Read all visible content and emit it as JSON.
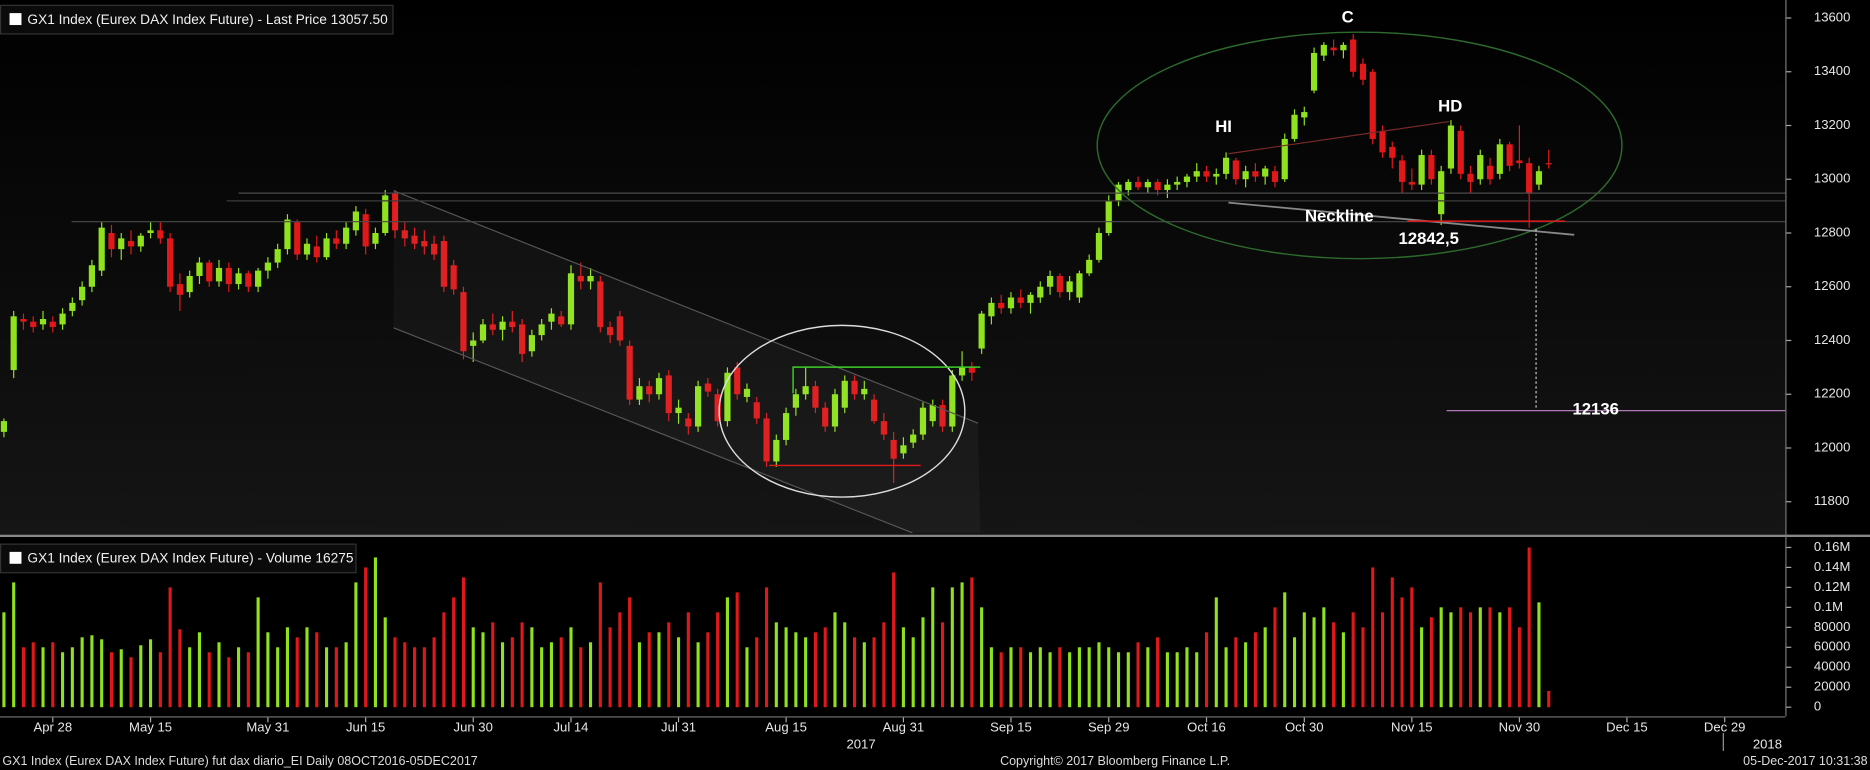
{
  "chart_data": [
    {
      "type": "candlestick",
      "title": "GX1 Index (Eurex DAX Index Future) - Last Price 13057.50",
      "up_color": "#8fe21d",
      "down_color": "#e0181a",
      "xlim": [
        -0.4,
        182.2
      ],
      "ylim": [
        11680,
        13667
      ],
      "yticks": [
        11800,
        12000,
        12200,
        12400,
        12600,
        12800,
        13000,
        13200,
        13400,
        13600
      ],
      "annotations": [
        "C",
        "HI",
        "HD",
        "Neckline",
        "12842,5",
        "12136"
      ],
      "ohlc": [
        [
          12060,
          12110,
          12040,
          12100
        ],
        [
          12290,
          12510,
          12260,
          12490
        ],
        [
          12480,
          12500,
          12440,
          12470
        ],
        [
          12470,
          12490,
          12430,
          12450
        ],
        [
          12460,
          12510,
          12440,
          12480
        ],
        [
          12470,
          12490,
          12430,
          12450
        ],
        [
          12460,
          12520,
          12440,
          12500
        ],
        [
          12510,
          12560,
          12490,
          12540
        ],
        [
          12550,
          12620,
          12530,
          12600
        ],
        [
          12600,
          12700,
          12580,
          12680
        ],
        [
          12660,
          12840,
          12640,
          12820
        ],
        [
          12800,
          12830,
          12710,
          12740
        ],
        [
          12740,
          12800,
          12700,
          12780
        ],
        [
          12770,
          12810,
          12720,
          12750
        ],
        [
          12750,
          12800,
          12730,
          12790
        ],
        [
          12800,
          12840,
          12780,
          12810
        ],
        [
          12810,
          12840,
          12760,
          12780
        ],
        [
          12780,
          12800,
          12580,
          12600
        ],
        [
          12610,
          12650,
          12510,
          12570
        ],
        [
          12580,
          12660,
          12560,
          12640
        ],
        [
          12640,
          12710,
          12610,
          12690
        ],
        [
          12690,
          12700,
          12600,
          12620
        ],
        [
          12620,
          12700,
          12600,
          12670
        ],
        [
          12670,
          12690,
          12580,
          12610
        ],
        [
          12610,
          12670,
          12590,
          12650
        ],
        [
          12650,
          12660,
          12580,
          12600
        ],
        [
          12600,
          12670,
          12580,
          12660
        ],
        [
          12660,
          12710,
          12630,
          12690
        ],
        [
          12690,
          12760,
          12670,
          12740
        ],
        [
          12740,
          12870,
          12720,
          12850
        ],
        [
          12840,
          12850,
          12700,
          12720
        ],
        [
          12720,
          12780,
          12700,
          12760
        ],
        [
          12750,
          12790,
          12690,
          12710
        ],
        [
          12710,
          12800,
          12700,
          12780
        ],
        [
          12780,
          12810,
          12740,
          12760
        ],
        [
          12760,
          12840,
          12740,
          12820
        ],
        [
          12810,
          12900,
          12790,
          12880
        ],
        [
          12870,
          12890,
          12720,
          12750
        ],
        [
          12760,
          12820,
          12740,
          12800
        ],
        [
          12800,
          12960,
          12790,
          12940
        ],
        [
          12950,
          12960,
          12780,
          12810
        ],
        [
          12810,
          12840,
          12750,
          12780
        ],
        [
          12790,
          12820,
          12740,
          12760
        ],
        [
          12770,
          12810,
          12720,
          12750
        ],
        [
          12760,
          12790,
          12700,
          12720
        ],
        [
          12770,
          12790,
          12580,
          12600
        ],
        [
          12680,
          12700,
          12570,
          12590
        ],
        [
          12580,
          12600,
          12330,
          12360
        ],
        [
          12380,
          12430,
          12320,
          12400
        ],
        [
          12400,
          12480,
          12390,
          12460
        ],
        [
          12460,
          12500,
          12420,
          12440
        ],
        [
          12440,
          12490,
          12400,
          12470
        ],
        [
          12470,
          12510,
          12430,
          12450
        ],
        [
          12460,
          12480,
          12320,
          12350
        ],
        [
          12360,
          12440,
          12340,
          12420
        ],
        [
          12420,
          12480,
          12400,
          12460
        ],
        [
          12470,
          12520,
          12440,
          12500
        ],
        [
          12490,
          12510,
          12450,
          12460
        ],
        [
          12460,
          12680,
          12440,
          12650
        ],
        [
          12640,
          12690,
          12590,
          12620
        ],
        [
          12620,
          12670,
          12590,
          12640
        ],
        [
          12620,
          12640,
          12430,
          12450
        ],
        [
          12450,
          12470,
          12390,
          12420
        ],
        [
          12490,
          12510,
          12380,
          12400
        ],
        [
          12380,
          12400,
          12160,
          12180
        ],
        [
          12180,
          12260,
          12160,
          12230
        ],
        [
          12230,
          12250,
          12170,
          12200
        ],
        [
          12200,
          12280,
          12180,
          12260
        ],
        [
          12270,
          12290,
          12100,
          12130
        ],
        [
          12130,
          12180,
          12090,
          12150
        ],
        [
          12110,
          12130,
          12050,
          12080
        ],
        [
          12080,
          12250,
          12060,
          12230
        ],
        [
          12240,
          12260,
          12190,
          12210
        ],
        [
          12200,
          12220,
          12080,
          12100
        ],
        [
          12100,
          12300,
          12080,
          12280
        ],
        [
          12300,
          12320,
          12180,
          12200
        ],
        [
          12190,
          12240,
          12170,
          12220
        ],
        [
          12170,
          12190,
          12090,
          12110
        ],
        [
          12110,
          12130,
          11930,
          11950
        ],
        [
          11950,
          12050,
          11930,
          12030
        ],
        [
          12030,
          12150,
          12010,
          12130
        ],
        [
          12150,
          12220,
          12120,
          12200
        ],
        [
          12200,
          12300,
          12180,
          12230
        ],
        [
          12230,
          12250,
          12130,
          12150
        ],
        [
          12150,
          12170,
          12060,
          12080
        ],
        [
          12080,
          12220,
          12060,
          12200
        ],
        [
          12150,
          12270,
          12130,
          12250
        ],
        [
          12250,
          12270,
          12180,
          12200
        ],
        [
          12200,
          12250,
          12180,
          12220
        ],
        [
          12180,
          12200,
          12090,
          12100
        ],
        [
          12100,
          12130,
          12030,
          12050
        ],
        [
          12030,
          12060,
          11870,
          11960
        ],
        [
          11980,
          12040,
          11960,
          12010
        ],
        [
          12020,
          12070,
          12000,
          12050
        ],
        [
          12050,
          12170,
          12030,
          12150
        ],
        [
          12100,
          12180,
          12080,
          12160
        ],
        [
          12160,
          12180,
          12060,
          12080
        ],
        [
          12080,
          12290,
          12060,
          12270
        ],
        [
          12270,
          12360,
          12250,
          12300
        ],
        [
          12300,
          12320,
          12250,
          12280
        ],
        [
          12370,
          12510,
          12350,
          12500
        ],
        [
          12490,
          12560,
          12460,
          12540
        ],
        [
          12540,
          12570,
          12500,
          12520
        ],
        [
          12520,
          12580,
          12500,
          12560
        ],
        [
          12560,
          12590,
          12520,
          12540
        ],
        [
          12540,
          12580,
          12500,
          12570
        ],
        [
          12560,
          12620,
          12540,
          12600
        ],
        [
          12600,
          12660,
          12570,
          12640
        ],
        [
          12640,
          12650,
          12560,
          12580
        ],
        [
          12580,
          12640,
          12550,
          12620
        ],
        [
          12560,
          12660,
          12540,
          12650
        ],
        [
          12650,
          12720,
          12640,
          12700
        ],
        [
          12700,
          12820,
          12690,
          12800
        ],
        [
          12800,
          12940,
          12790,
          12920
        ],
        [
          12920,
          12990,
          12900,
          12980
        ],
        [
          12960,
          13000,
          12940,
          12990
        ],
        [
          12990,
          13010,
          12960,
          12970
        ],
        [
          12970,
          13000,
          12950,
          12990
        ],
        [
          12990,
          13000,
          12940,
          12960
        ],
        [
          12960,
          13000,
          12930,
          12980
        ],
        [
          12980,
          13010,
          12960,
          12990
        ],
        [
          12990,
          13020,
          12970,
          13010
        ],
        [
          13010,
          13060,
          12990,
          13030
        ],
        [
          13030,
          13050,
          12990,
          13010
        ],
        [
          13010,
          13040,
          12980,
          13020
        ],
        [
          13020,
          13100,
          13000,
          13080
        ],
        [
          13070,
          13080,
          12980,
          13000
        ],
        [
          13000,
          13050,
          12970,
          13030
        ],
        [
          13030,
          13060,
          12990,
          13010
        ],
        [
          13010,
          13050,
          12980,
          13040
        ],
        [
          13030,
          13050,
          12970,
          12990
        ],
        [
          13000,
          13170,
          12990,
          13150
        ],
        [
          13150,
          13260,
          13140,
          13240
        ],
        [
          13230,
          13270,
          13200,
          13250
        ],
        [
          13330,
          13490,
          13320,
          13470
        ],
        [
          13460,
          13510,
          13440,
          13500
        ],
        [
          13490,
          13520,
          13460,
          13480
        ],
        [
          13480,
          13510,
          13450,
          13500
        ],
        [
          13520,
          13540,
          13380,
          13400
        ],
        [
          13430,
          13450,
          13350,
          13370
        ],
        [
          13400,
          13410,
          13130,
          13150
        ],
        [
          13180,
          13200,
          13080,
          13100
        ],
        [
          13120,
          13140,
          13040,
          13080
        ],
        [
          13070,
          13090,
          12950,
          12990
        ],
        [
          12990,
          13040,
          12960,
          12980
        ],
        [
          12980,
          13110,
          12960,
          13090
        ],
        [
          13090,
          13110,
          12980,
          13000
        ],
        [
          12870,
          13050,
          12830,
          13030
        ],
        [
          13040,
          13220,
          13020,
          13200
        ],
        [
          13180,
          13200,
          13000,
          13020
        ],
        [
          13020,
          13050,
          12950,
          12990
        ],
        [
          13000,
          13110,
          12980,
          13090
        ],
        [
          13050,
          13080,
          12980,
          13000
        ],
        [
          13020,
          13150,
          13000,
          13130
        ],
        [
          13130,
          13140,
          13030,
          13050
        ],
        [
          13070,
          13200,
          13040,
          13060
        ],
        [
          13060,
          13080,
          12820,
          12950
        ],
        [
          12980,
          13050,
          12960,
          13030
        ],
        [
          13060,
          13110,
          13040,
          13057.5
        ]
      ]
    },
    {
      "type": "bar",
      "title": "GX1 Index (Eurex DAX Index Future) - Volume 16275",
      "xlim": [
        -0.4,
        182.2
      ],
      "ylim": [
        -8000,
        168700
      ],
      "yticks": [
        0,
        20000,
        40000,
        60000,
        80000,
        {
          "value": 100000,
          "label": "0.1M"
        },
        {
          "value": 120000,
          "label": "0.12M"
        },
        {
          "value": 140000,
          "label": "0.14M"
        },
        {
          "value": 160000,
          "label": "0.16M"
        }
      ],
      "xticks": [
        {
          "value": 5,
          "label": "Apr 28"
        },
        {
          "value": 15,
          "label": "May 15"
        },
        {
          "value": 27,
          "label": "May 31"
        },
        {
          "value": 37,
          "label": "Jun 15"
        },
        {
          "value": 48,
          "label": "Jun 30"
        },
        {
          "value": 58,
          "label": "Jul 14"
        },
        {
          "value": 69,
          "label": "Jul 31"
        },
        {
          "value": 80,
          "label": "Aug 15"
        },
        {
          "value": 92,
          "label": "Aug 31"
        },
        {
          "value": 103,
          "label": "Sep 15"
        },
        {
          "value": 113,
          "label": "Sep 29"
        },
        {
          "value": 123,
          "label": "Oct 16"
        },
        {
          "value": 133,
          "label": "Oct 30"
        },
        {
          "value": 144,
          "label": "Nov 15"
        },
        {
          "value": 155,
          "label": "Nov 30"
        },
        {
          "value": 166,
          "label": "Dec 15"
        },
        {
          "value": 176,
          "label": "Dec 29"
        }
      ],
      "values": [
        95000,
        125000,
        60000,
        65000,
        60000,
        65000,
        55000,
        60000,
        70000,
        72000,
        68000,
        55000,
        58000,
        50000,
        62000,
        68000,
        55000,
        120000,
        78000,
        60000,
        75000,
        55000,
        65000,
        50000,
        60000,
        55000,
        110000,
        75000,
        60000,
        80000,
        70000,
        80000,
        75000,
        60000,
        60000,
        65000,
        125000,
        140000,
        150000,
        90000,
        70000,
        65000,
        60000,
        60000,
        70000,
        95000,
        110000,
        130000,
        80000,
        75000,
        85000,
        65000,
        70000,
        85000,
        80000,
        60000,
        65000,
        70000,
        80000,
        60000,
        65000,
        125000,
        80000,
        95000,
        110000,
        65000,
        75000,
        75000,
        85000,
        70000,
        95000,
        65000,
        75000,
        95000,
        110000,
        115000,
        60000,
        70000,
        120000,
        85000,
        80000,
        75000,
        70000,
        75000,
        80000,
        95000,
        85000,
        70000,
        65000,
        70000,
        85000,
        135000,
        80000,
        70000,
        90000,
        120000,
        85000,
        120000,
        125000,
        130000,
        100000,
        60000,
        55000,
        60000,
        60000,
        55000,
        60000,
        55000,
        60000,
        55000,
        60000,
        60000,
        65000,
        60000,
        55000,
        55000,
        65000,
        60000,
        70000,
        55000,
        55000,
        60000,
        55000,
        75000,
        110000,
        60000,
        70000,
        65000,
        75000,
        80000,
        100000,
        115000,
        70000,
        95000,
        90000,
        100000,
        85000,
        75000,
        95000,
        80000,
        140000,
        95000,
        130000,
        110000,
        120000,
        80000,
        90000,
        100000,
        95000,
        100000,
        95000,
        100000,
        100000,
        95000,
        100000,
        80000,
        160000,
        105000,
        16275
      ]
    }
  ],
  "years": [
    "2017",
    "2018"
  ],
  "footer": {
    "left": "GX1 Index (Eurex DAX Index Future) fut dax diario_EI  Daily 08OCT2016-05DEC2017",
    "center": "Copyright© 2017 Bloomberg Finance L.P.",
    "right": "05-Dec-2017 10:31:38"
  }
}
